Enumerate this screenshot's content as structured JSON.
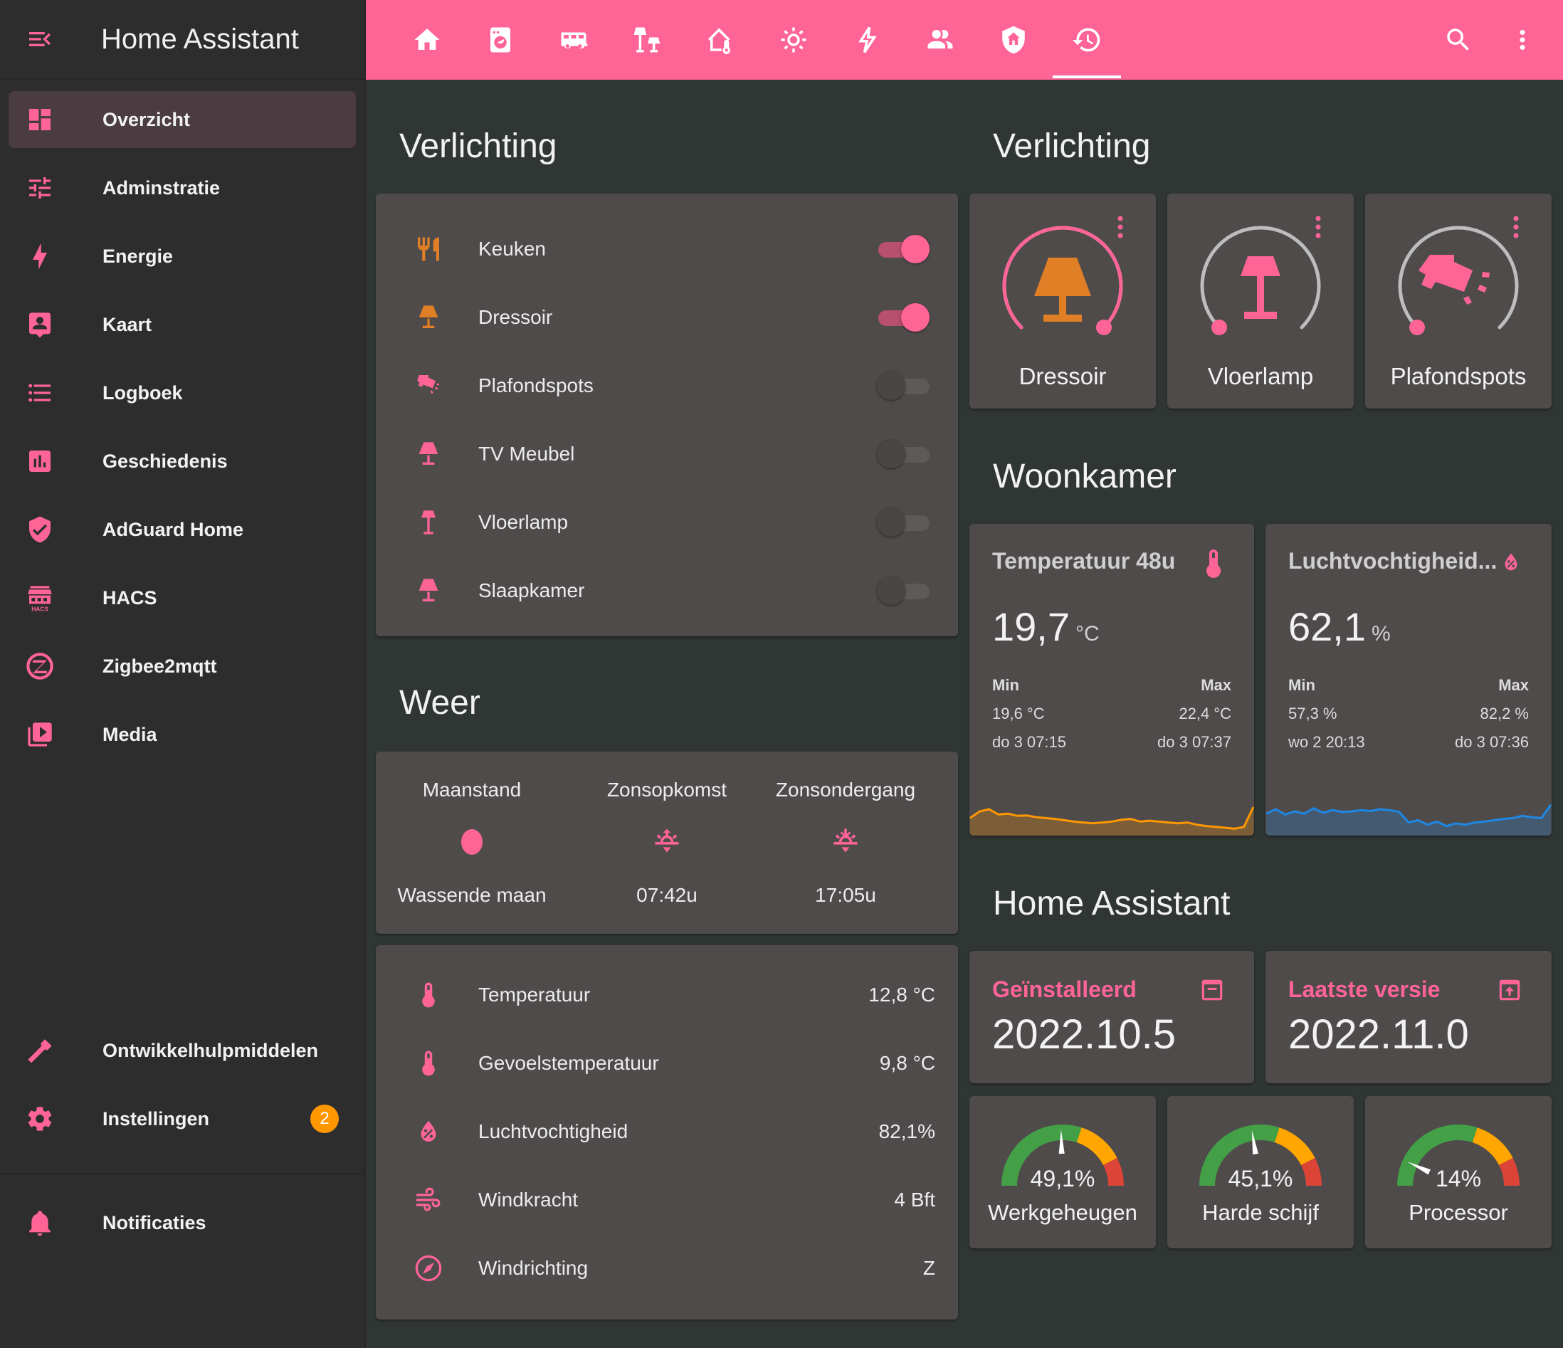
{
  "app": {
    "title": "Home Assistant"
  },
  "sidebar": {
    "items": [
      {
        "label": "Overzicht",
        "icon": "dashboard-icon"
      },
      {
        "label": "Adminstratie",
        "icon": "tune-icon"
      },
      {
        "label": "Energie",
        "icon": "lightning-icon"
      },
      {
        "label": "Kaart",
        "icon": "map-account-icon"
      },
      {
        "label": "Logboek",
        "icon": "list-icon"
      },
      {
        "label": "Geschiedenis",
        "icon": "chart-box-icon"
      },
      {
        "label": "AdGuard Home",
        "icon": "shield-check-icon"
      },
      {
        "label": "HACS",
        "icon": "hacs-icon"
      },
      {
        "label": "Zigbee2mqtt",
        "icon": "zigbee-icon"
      },
      {
        "label": "Media",
        "icon": "play-box-icon"
      }
    ],
    "bottom": [
      {
        "label": "Ontwikkelhulpmiddelen",
        "icon": "hammer-icon"
      },
      {
        "label": "Instellingen",
        "icon": "gear-icon",
        "badge": "2"
      }
    ],
    "notifications": {
      "label": "Notificaties",
      "icon": "bell-icon"
    }
  },
  "topbar": {
    "tabs": [
      "home-icon",
      "washer-icon",
      "rv-icon",
      "floor-lamps-icon",
      "home-thermometer-icon",
      "brightness-icon",
      "flash-icon",
      "people-icon",
      "shield-home-icon",
      "history-icon"
    ],
    "active_tab": 9,
    "accent": "#ff6497"
  },
  "verlichting_list": {
    "title": "Verlichting",
    "rows": [
      {
        "label": "Keuken",
        "icon": "silverware-icon",
        "on": true
      },
      {
        "label": "Dressoir",
        "icon": "lamp-icon",
        "on": true
      },
      {
        "label": "Plafondspots",
        "icon": "spotlight-icon",
        "on": false
      },
      {
        "label": "TV Meubel",
        "icon": "lamp-icon",
        "on": false
      },
      {
        "label": "Vloerlamp",
        "icon": "floor-lamp-icon",
        "on": false
      },
      {
        "label": "Slaapkamer",
        "icon": "lamp-icon",
        "on": false
      }
    ]
  },
  "verlichting_tiles": {
    "title": "Verlichting",
    "tiles": [
      {
        "name": "Dressoir",
        "brightness": 1.0
      },
      {
        "name": "Vloerlamp",
        "brightness": 0.0
      },
      {
        "name": "Plafondspots",
        "brightness": 0.0
      }
    ]
  },
  "weer": {
    "title": "Weer",
    "cols": [
      {
        "h": "Maanstand",
        "v": "Wassende maan",
        "icon": "moon-icon"
      },
      {
        "h": "Zonsopkomst",
        "v": "07:42u",
        "icon": "sunrise-icon"
      },
      {
        "h": "Zonsondergang",
        "v": "17:05u",
        "icon": "sunset-icon"
      }
    ],
    "rows": [
      {
        "label": "Temperatuur",
        "value": "12,8 °C",
        "icon": "thermometer-icon"
      },
      {
        "label": "Gevoelstemperatuur",
        "value": "9,8 °C",
        "icon": "thermometer-icon"
      },
      {
        "label": "Luchtvochtigheid",
        "value": "82,1%",
        "icon": "water-percent-icon"
      },
      {
        "label": "Windkracht",
        "value": "4 Bft",
        "icon": "wind-icon"
      },
      {
        "label": "Windrichting",
        "value": "Z",
        "icon": "compass-icon"
      }
    ]
  },
  "woonkamer": {
    "title": "Woonkamer",
    "temp": {
      "title": "Temperatuur 48u",
      "value": "19,7",
      "unit": "°C",
      "min_label": "Min",
      "max_label": "Max",
      "min": "19,6 °C",
      "max": "22,4 °C",
      "min_time": "do 3 07:15",
      "max_time": "do 3 07:37",
      "color": "#ff9800",
      "series": [
        0.3,
        0.45,
        0.5,
        0.38,
        0.4,
        0.35,
        0.36,
        0.32,
        0.3,
        0.28,
        0.25,
        0.22,
        0.2,
        0.18,
        0.2,
        0.22,
        0.26,
        0.28,
        0.22,
        0.24,
        0.22,
        0.2,
        0.18,
        0.2,
        0.15,
        0.12,
        0.1,
        0.08,
        0.06,
        0.1,
        0.55
      ]
    },
    "hum": {
      "title": "Luchtvochtigheid...",
      "value": "62,1",
      "unit": "%",
      "min_label": "Min",
      "max_label": "Max",
      "min": "57,3 %",
      "max": "82,2 %",
      "min_time": "wo 2 20:13",
      "max_time": "do 3 07:36",
      "color": "#1e88e5",
      "series": [
        0.4,
        0.5,
        0.38,
        0.45,
        0.4,
        0.52,
        0.42,
        0.48,
        0.44,
        0.45,
        0.48,
        0.46,
        0.5,
        0.48,
        0.44,
        0.2,
        0.25,
        0.15,
        0.22,
        0.12,
        0.18,
        0.15,
        0.2,
        0.22,
        0.25,
        0.28,
        0.3,
        0.35,
        0.32,
        0.3,
        0.6
      ]
    }
  },
  "home_assistant": {
    "title": "Home Assistant",
    "installed": {
      "label": "Geïnstalleerd",
      "value": "2022.10.5"
    },
    "latest": {
      "label": "Laatste versie",
      "value": "2022.11.0"
    },
    "gauges": [
      {
        "value": 49.1,
        "text": "49,1%",
        "name": "Werkgeheugen"
      },
      {
        "value": 45.1,
        "text": "45,1%",
        "name": "Harde schijf"
      },
      {
        "value": 14,
        "text": "14%",
        "name": "Processor"
      }
    ]
  }
}
